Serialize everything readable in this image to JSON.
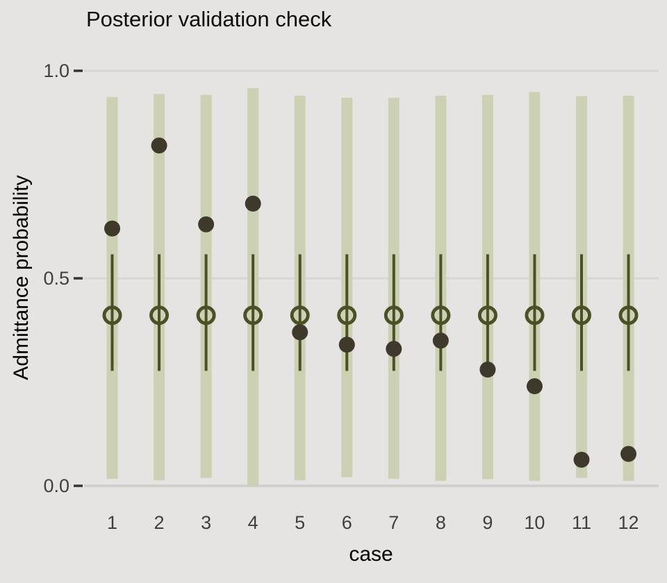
{
  "colors": {
    "background": "#e5e4e2",
    "gridline": "#d7d6d3",
    "zero_gridline": "#d1d0cd",
    "outer_bar": "#cdd1b3",
    "interval_stroke": "#4b5026",
    "observed_dot": "#3e392a",
    "tick_mark": "#343434",
    "tick_label": "#3f3f3f",
    "title_text": "#0c0c0c",
    "axis_title_text": "#000000"
  },
  "chart_data": {
    "type": "scatter",
    "subtype": "posterior-predictive-interval-pointrange",
    "title": "Posterior validation check",
    "xlabel": "case",
    "ylabel": "Admittance probability",
    "x": [
      1,
      2,
      3,
      4,
      5,
      6,
      7,
      8,
      9,
      10,
      11,
      12
    ],
    "x_tick_labels": [
      "1",
      "2",
      "3",
      "4",
      "5",
      "6",
      "7",
      "8",
      "9",
      "10",
      "11",
      "12"
    ],
    "y_ticks": [
      {
        "value": 0.0,
        "label": "0.0"
      },
      {
        "value": 0.5,
        "label": "0.5"
      },
      {
        "value": 1.0,
        "label": "1.0"
      }
    ],
    "ylim": [
      -0.04,
      1.03
    ],
    "grid": "horizontal-only",
    "legend": "none",
    "series": [
      {
        "name": "outer predictive interval (wide bar)",
        "style": "thick-bar",
        "lo": [
          0.017,
          0.013,
          0.019,
          0.0,
          0.013,
          0.021,
          0.017,
          0.012,
          0.016,
          0.012,
          0.019,
          0.012
        ],
        "hi": [
          0.937,
          0.944,
          0.942,
          0.958,
          0.94,
          0.935,
          0.935,
          0.94,
          0.942,
          0.949,
          0.939,
          0.94
        ]
      },
      {
        "name": "inner predictive interval (thin line)",
        "style": "line-range",
        "lo": [
          0.277,
          0.277,
          0.277,
          0.277,
          0.277,
          0.277,
          0.277,
          0.277,
          0.277,
          0.277,
          0.277,
          0.277
        ],
        "hi": [
          0.558,
          0.558,
          0.558,
          0.558,
          0.558,
          0.558,
          0.558,
          0.558,
          0.558,
          0.558,
          0.558,
          0.558
        ]
      },
      {
        "name": "posterior median (open circle)",
        "style": "open-circle",
        "values": [
          0.411,
          0.411,
          0.411,
          0.411,
          0.411,
          0.411,
          0.411,
          0.411,
          0.411,
          0.411,
          0.411,
          0.411
        ]
      },
      {
        "name": "observed value (solid dot)",
        "style": "filled-dot",
        "values": [
          0.62,
          0.82,
          0.63,
          0.68,
          0.37,
          0.34,
          0.33,
          0.35,
          0.28,
          0.24,
          0.063,
          0.077
        ]
      }
    ]
  }
}
